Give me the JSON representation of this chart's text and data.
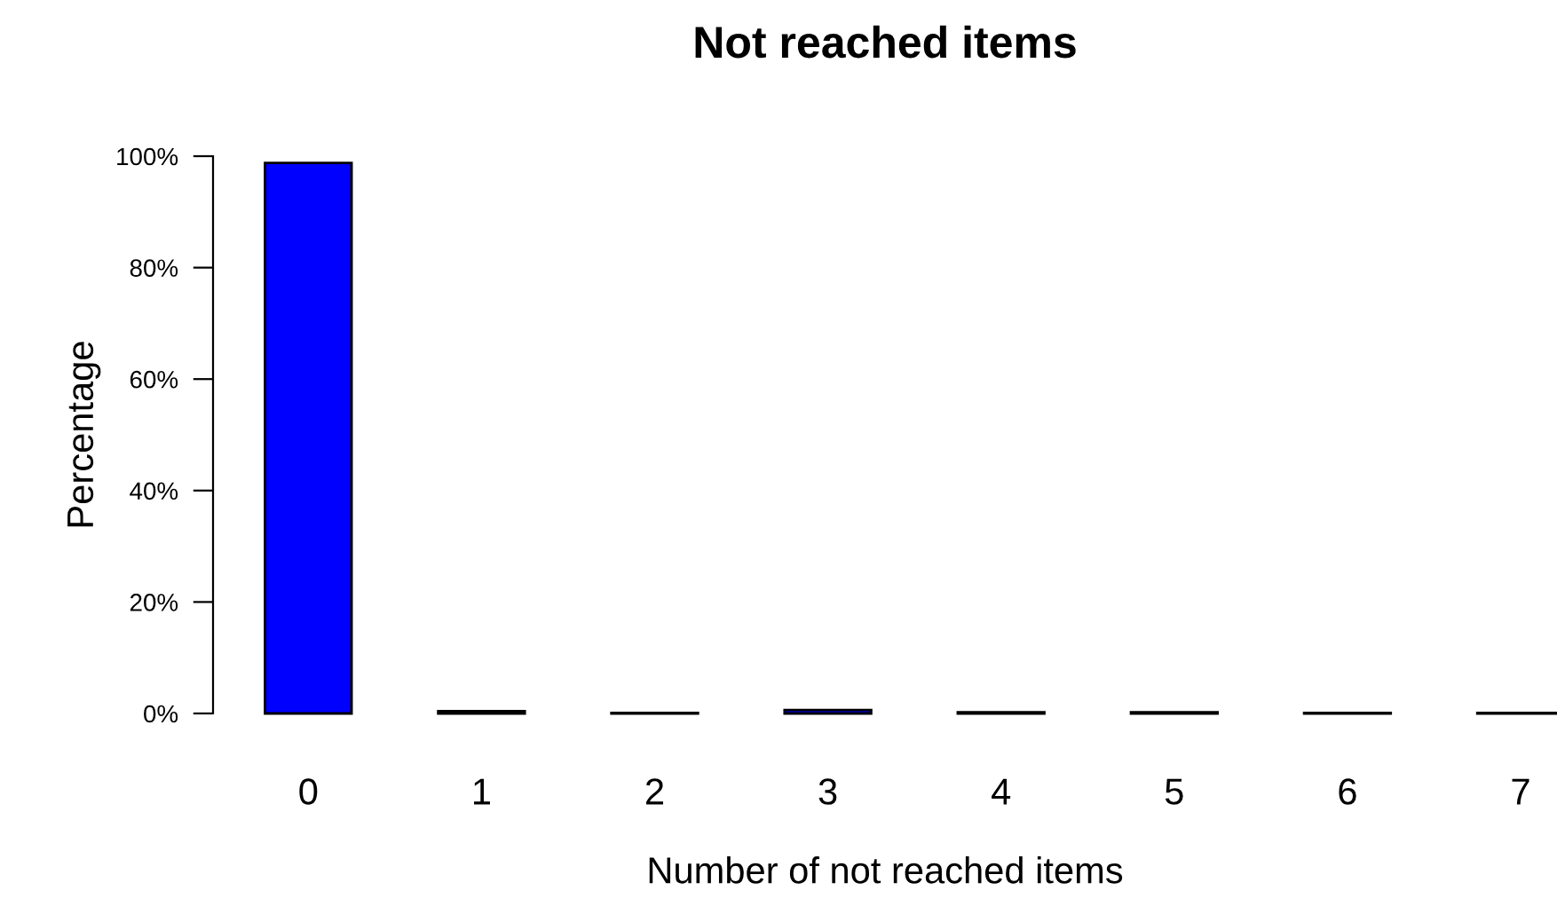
{
  "chart_data": {
    "type": "bar",
    "title": "Not reached items",
    "xlabel": "Number of not reached items",
    "ylabel": "Percentage",
    "categories": [
      "0",
      "1",
      "2",
      "3",
      "4",
      "5",
      "6",
      "7"
    ],
    "values": [
      98.8,
      0.4,
      0.1,
      0.6,
      0.2,
      0.2,
      0.1,
      0.1
    ],
    "color": "#0000ff",
    "ylim": [
      0,
      100
    ],
    "yticks": [
      {
        "value": 0,
        "label": "0%"
      },
      {
        "value": 20,
        "label": "20%"
      },
      {
        "value": 40,
        "label": "40%"
      },
      {
        "value": 60,
        "label": "60%"
      },
      {
        "value": 80,
        "label": "80%"
      },
      {
        "value": 100,
        "label": "100%"
      }
    ],
    "grid": false,
    "legend": false
  }
}
